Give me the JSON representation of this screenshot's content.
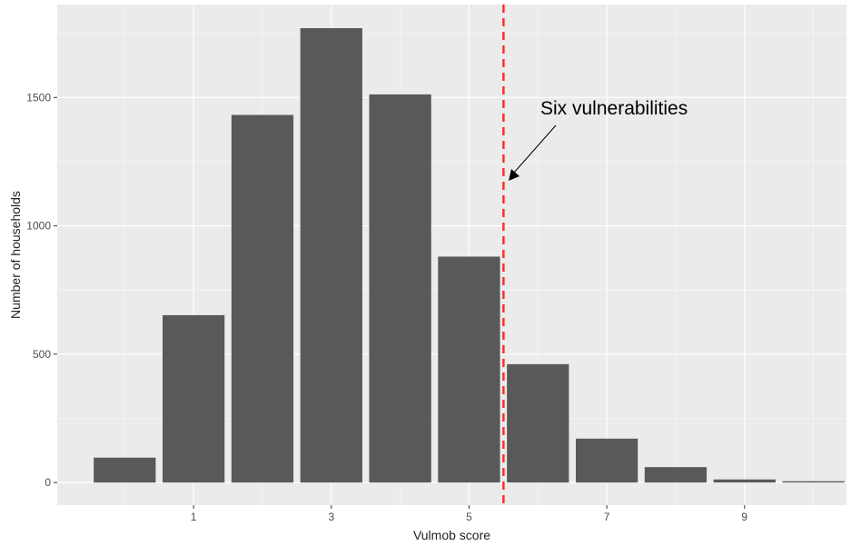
{
  "chart_data": {
    "type": "bar",
    "categories": [
      0,
      1,
      2,
      3,
      4,
      5,
      6,
      7,
      8,
      9,
      10
    ],
    "values": [
      97,
      652,
      1432,
      1770,
      1512,
      880,
      461,
      171,
      60,
      12,
      5
    ],
    "xlabel": "Vulmob score",
    "ylabel": "Number of households",
    "x_ticks": [
      1,
      3,
      5,
      7,
      9
    ],
    "y_ticks": [
      0,
      500,
      1000,
      1500
    ],
    "xlim": [
      -0.98,
      10.48
    ],
    "ylim": [
      -88,
      1862
    ],
    "grid": true,
    "bar_color": "#595959",
    "panel_color": "#ebebeb",
    "reference_line": {
      "x": 5.5,
      "color": "#ff2d2d",
      "style": "dashed"
    },
    "annotation": {
      "text": "Six vulnerabilities",
      "arrow_to_x": 5.5
    }
  }
}
